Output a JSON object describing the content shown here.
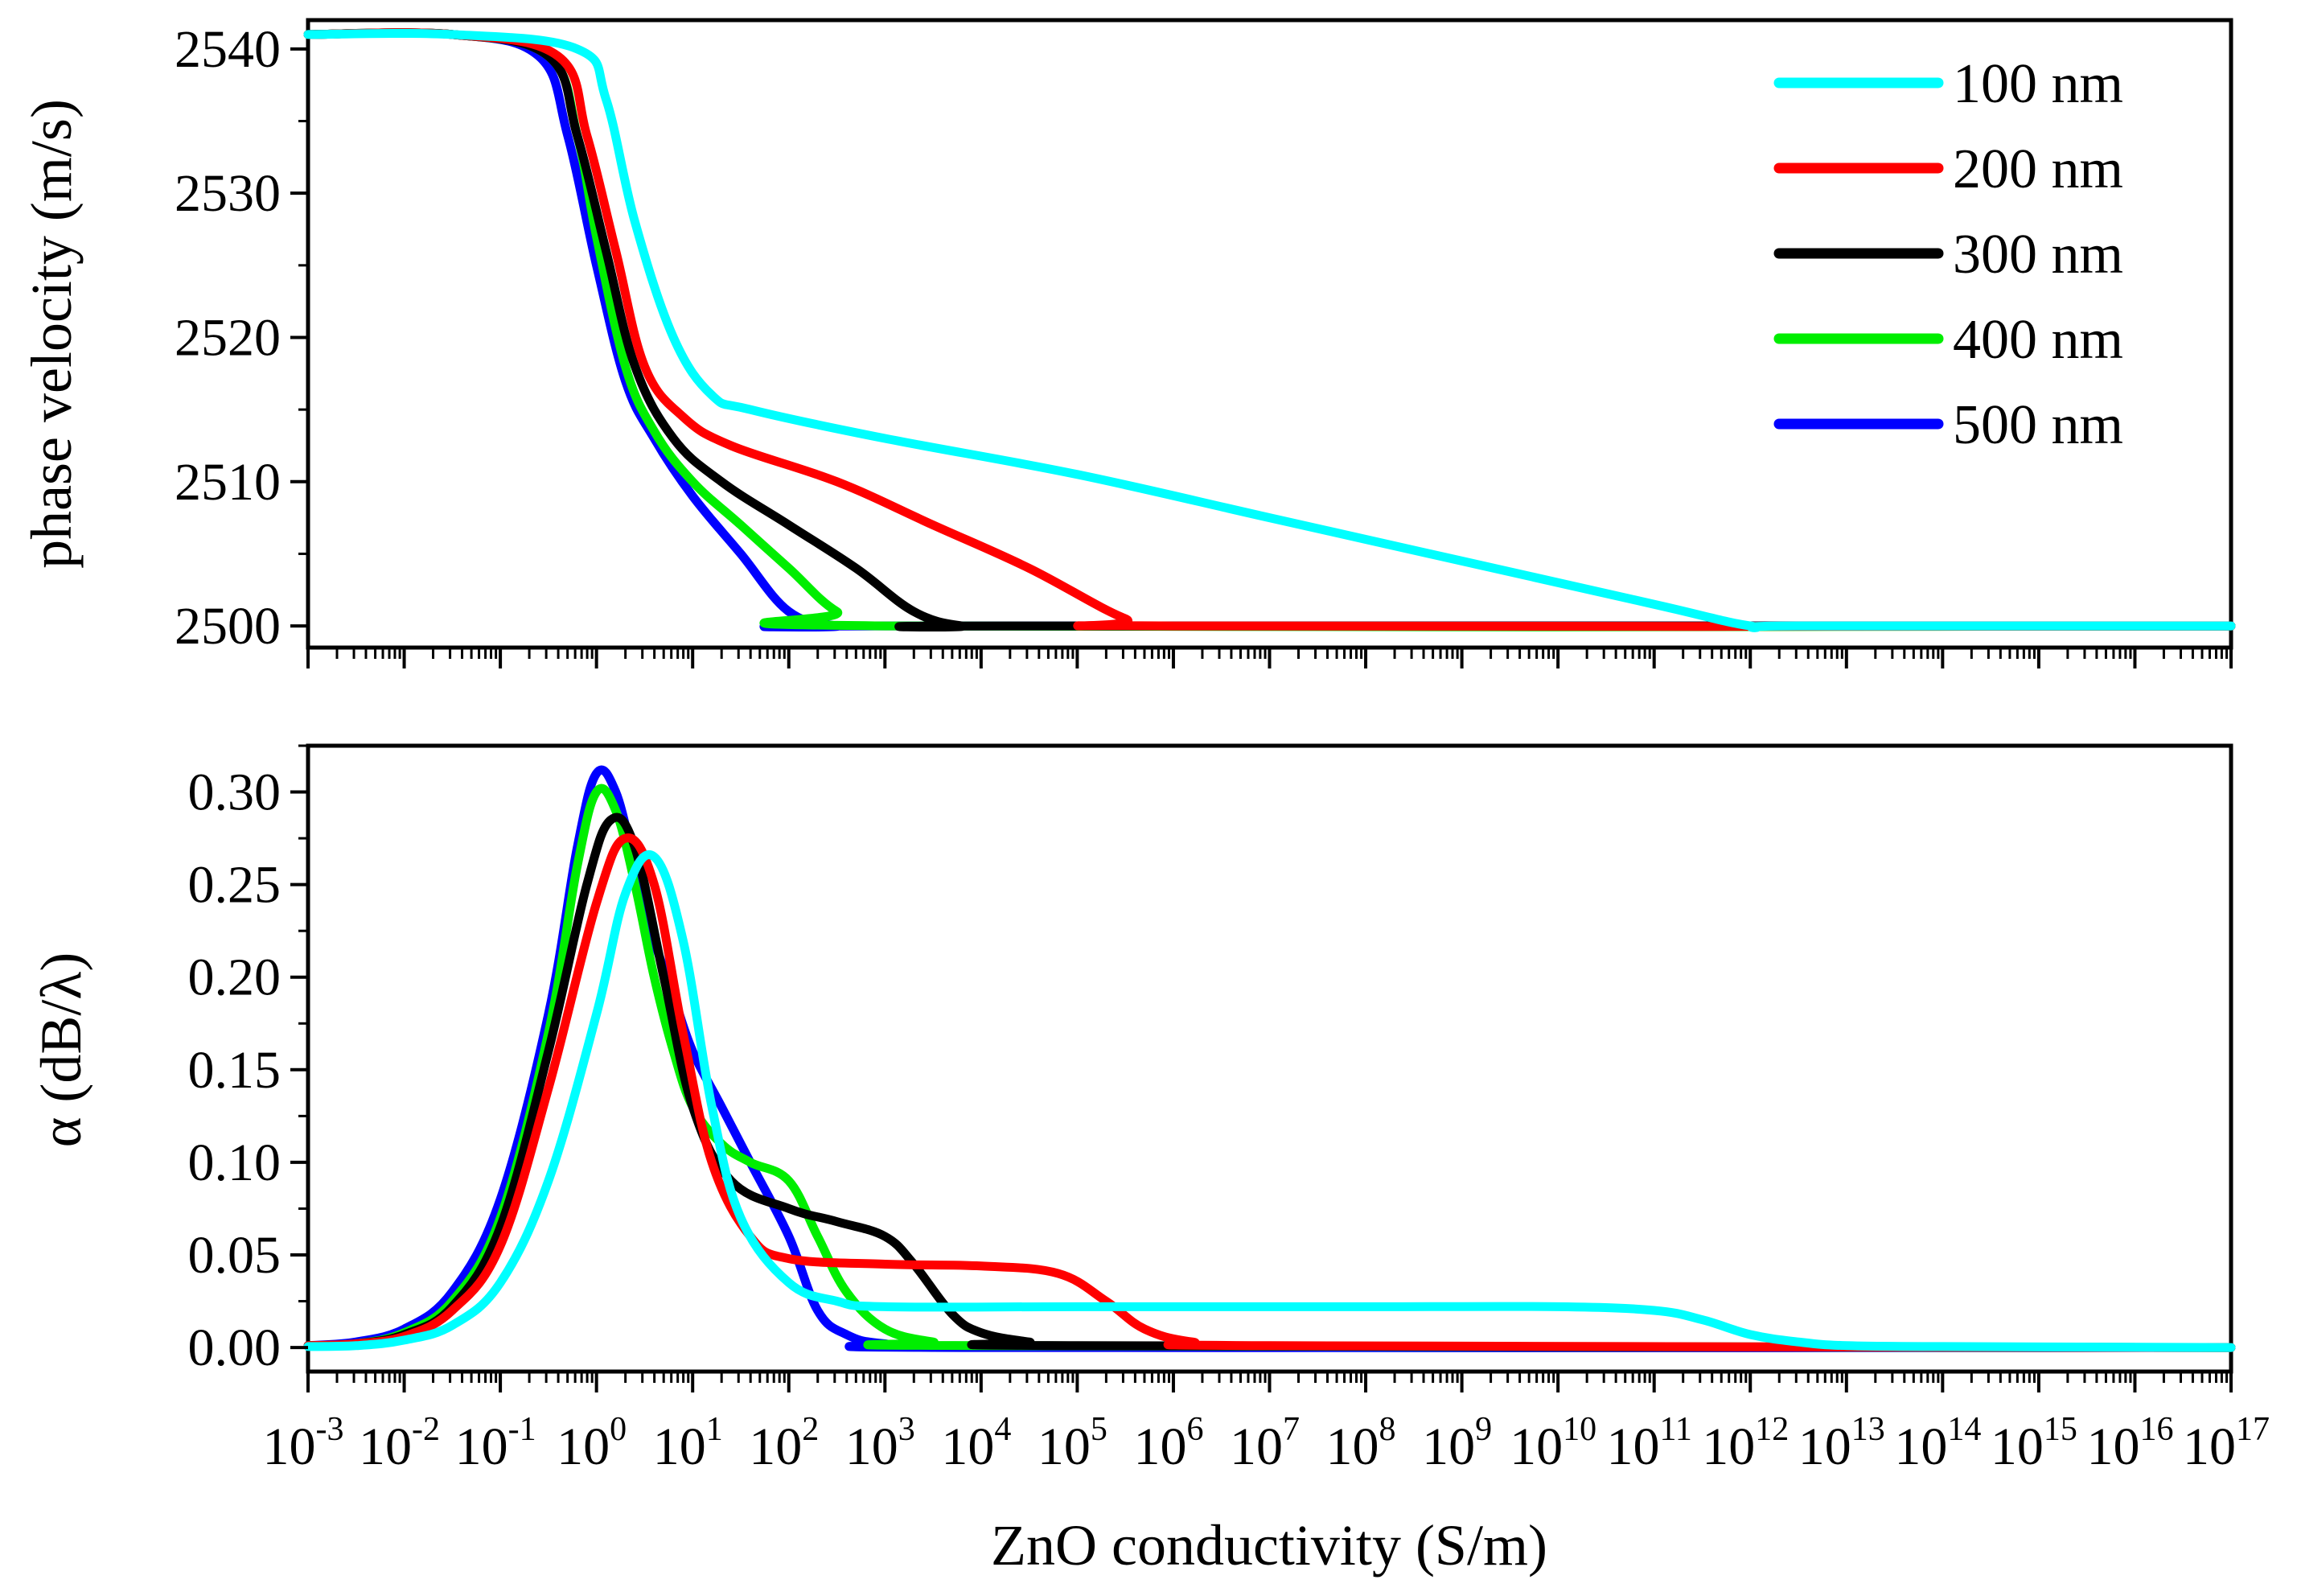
{
  "chart_data": [
    {
      "id": "velocity",
      "type": "line",
      "ylabel": "phase velocity (m/s)",
      "xlabel": "",
      "xscale": "log",
      "xlim_exp": [
        -3,
        17
      ],
      "ylim": [
        2498.5,
        2542
      ],
      "yticks": [
        2500,
        2510,
        2520,
        2530,
        2540
      ],
      "ytick_labels": [
        "2500",
        "2510",
        "2520",
        "2530",
        "2540"
      ],
      "xtick_labels_shown": false,
      "legend_position": "top-right",
      "legend": [
        "100 nm",
        "200 nm",
        "300 nm",
        "400 nm",
        "500 nm"
      ],
      "series": [
        {
          "name": "500 nm",
          "color": "#0000ff",
          "x_log": [
            -3,
            -1.5,
            -0.6,
            -0.3,
            0,
            0.3,
            0.6,
            1,
            1.5,
            2,
            2.5,
            3,
            17
          ],
          "y": [
            2541,
            2541,
            2539.5,
            2534,
            2525,
            2517,
            2513,
            2509,
            2505,
            2501,
            2500,
            2500,
            2500
          ]
        },
        {
          "name": "400 nm",
          "color": "#00ee00",
          "x_log": [
            -3,
            -1.5,
            -0.5,
            -0.2,
            0,
            0.3,
            0.6,
            1,
            1.5,
            2,
            2.5,
            3,
            17
          ],
          "y": [
            2541,
            2541,
            2539.5,
            2534,
            2527,
            2518,
            2513.5,
            2510,
            2507,
            2504,
            2501,
            2500,
            2500
          ]
        },
        {
          "name": "300 nm",
          "color": "#000000",
          "x_log": [
            -3,
            -1.5,
            -0.5,
            -0.2,
            0.1,
            0.4,
            0.8,
            1.3,
            2,
            2.7,
            3.3,
            3.8,
            4.3,
            17
          ],
          "y": [
            2541,
            2541,
            2539.5,
            2534,
            2526,
            2518,
            2513,
            2510,
            2507,
            2504,
            2501,
            2500,
            2500,
            2500
          ]
        },
        {
          "name": "200 nm",
          "color": "#ff0000",
          "x_log": [
            -3,
            -1.5,
            -0.4,
            -0.1,
            0.2,
            0.5,
            0.9,
            1.4,
            2.5,
            3.5,
            4.5,
            5.5,
            6,
            17
          ],
          "y": [
            2541,
            2541,
            2539.5,
            2534,
            2526,
            2518,
            2514.5,
            2512.5,
            2510,
            2507,
            2504,
            2500.5,
            2500,
            2500
          ]
        },
        {
          "name": "100 nm",
          "color": "#00ffff",
          "x_log": [
            -3,
            -1.5,
            -0.2,
            0.1,
            0.4,
            0.8,
            1.2,
            1.6,
            3,
            5,
            7,
            9,
            11,
            12,
            12.5,
            17
          ],
          "y": [
            2541,
            2541,
            2540,
            2536.5,
            2528,
            2520,
            2516,
            2515,
            2513,
            2510.5,
            2507.5,
            2504.5,
            2501.5,
            2500,
            2500,
            2500
          ]
        }
      ]
    },
    {
      "id": "attenuation",
      "type": "line",
      "ylabel": "α (dB/λ)",
      "xlabel": "ZnO conductivity (S/m)",
      "xscale": "log",
      "xlim_exp": [
        -3,
        17
      ],
      "ylim": [
        -0.013,
        0.325
      ],
      "yticks": [
        0,
        0.05,
        0.1,
        0.15,
        0.2,
        0.25,
        0.3
      ],
      "ytick_labels": [
        "0.00",
        "0.05",
        "0.10",
        "0.15",
        "0.20",
        "0.25",
        "0.30"
      ],
      "xtick_base": "10",
      "xtick_exponents": [
        "-3",
        "-2",
        "-1",
        "0",
        "1",
        "2",
        "3",
        "4",
        "5",
        "6",
        "7",
        "8",
        "9",
        "10",
        "11",
        "12",
        "13",
        "14",
        "15",
        "16",
        "17"
      ],
      "series": [
        {
          "name": "500 nm",
          "color": "#0000ff",
          "x_log": [
            -3,
            -2.5,
            -2,
            -1.5,
            -1,
            -0.5,
            -0.2,
            0,
            0.2,
            0.4,
            0.6,
            0.8,
            1.0,
            1.3,
            1.6,
            2,
            2.3,
            2.6,
            3,
            4,
            17
          ],
          "y": [
            0.001,
            0.003,
            0.01,
            0.03,
            0.08,
            0.18,
            0.27,
            0.31,
            0.3,
            0.26,
            0.22,
            0.19,
            0.16,
            0.13,
            0.1,
            0.06,
            0.02,
            0.007,
            0.002,
            0,
            0
          ]
        },
        {
          "name": "400 nm",
          "color": "#00ee00",
          "x_log": [
            -3,
            -2.5,
            -2,
            -1.5,
            -1,
            -0.5,
            -0.2,
            0,
            0.2,
            0.4,
            0.6,
            0.8,
            1.0,
            1.3,
            1.6,
            2,
            2.3,
            2.6,
            3,
            3.5,
            4,
            17
          ],
          "y": [
            0.001,
            0.002,
            0.008,
            0.025,
            0.07,
            0.17,
            0.26,
            0.3,
            0.29,
            0.25,
            0.2,
            0.16,
            0.13,
            0.11,
            0.1,
            0.09,
            0.06,
            0.03,
            0.01,
            0.003,
            0.001,
            0
          ]
        },
        {
          "name": "300 nm",
          "color": "#000000",
          "x_log": [
            -3,
            -2.5,
            -2,
            -1.5,
            -1,
            -0.5,
            -0.1,
            0.15,
            0.4,
            0.7,
            1.0,
            1.4,
            2,
            2.5,
            3,
            3.3,
            3.7,
            4,
            4.5,
            5,
            17
          ],
          "y": [
            0.001,
            0.002,
            0.007,
            0.022,
            0.065,
            0.16,
            0.25,
            0.285,
            0.27,
            0.2,
            0.13,
            0.09,
            0.075,
            0.068,
            0.06,
            0.045,
            0.018,
            0.008,
            0.003,
            0.001,
            0
          ]
        },
        {
          "name": "200 nm",
          "color": "#ff0000",
          "x_log": [
            -3,
            -2.5,
            -2,
            -1.5,
            -1,
            -0.5,
            0,
            0.3,
            0.6,
            0.9,
            1.2,
            1.6,
            2,
            3,
            4,
            4.8,
            5.3,
            5.7,
            6.2,
            7,
            17
          ],
          "y": [
            0.001,
            0.002,
            0.006,
            0.02,
            0.055,
            0.14,
            0.24,
            0.275,
            0.25,
            0.17,
            0.1,
            0.06,
            0.048,
            0.045,
            0.044,
            0.04,
            0.025,
            0.01,
            0.003,
            0.001,
            0
          ]
        },
        {
          "name": "100 nm",
          "color": "#00ffff",
          "x_log": [
            -3,
            -2.5,
            -2,
            -1.5,
            -1,
            -0.5,
            0,
            0.3,
            0.6,
            0.9,
            1.2,
            1.5,
            2,
            2.5,
            3,
            5,
            8,
            10,
            11,
            11.5,
            12,
            12.5,
            13,
            14,
            17
          ],
          "y": [
            0.0005,
            0.001,
            0.004,
            0.012,
            0.035,
            0.09,
            0.18,
            0.245,
            0.265,
            0.22,
            0.13,
            0.07,
            0.035,
            0.025,
            0.022,
            0.022,
            0.022,
            0.022,
            0.02,
            0.015,
            0.007,
            0.003,
            0.001,
            0.0005,
            0
          ]
        }
      ]
    }
  ]
}
